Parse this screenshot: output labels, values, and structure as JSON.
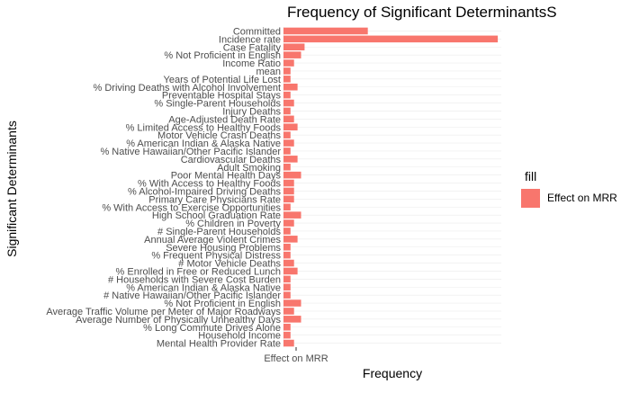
{
  "chart_data": {
    "type": "bar",
    "orientation": "horizontal",
    "title": "Frequency of Significant DeterminantsS",
    "xlabel": "Frequency",
    "ylabel": "Significant Determinants",
    "x_tick_labels": [
      "Effect on MRR"
    ],
    "grid": true,
    "legend": {
      "title": "fill",
      "placement": "right",
      "entries": [
        "Effect on MRR"
      ]
    },
    "series": [
      {
        "name": "Effect on MRR",
        "color": "#F8766D"
      }
    ],
    "categories": [
      "Mental Health Provider Rate",
      "Household Income",
      "% Long Commute Drives Alone",
      "Average Number of Physically Unhealthy Days",
      "Average Traffic Volume per Meter of Major Roadways",
      "% Not Proficient in English",
      "# Native Hawaiian/Other Pacific Islander",
      "% American Indian & Alaska Native",
      "# Households with Severe Cost Burden",
      "% Enrolled in Free or Reduced Lunch",
      "# Motor Vehicle Deaths",
      "% Frequent Physical Distress",
      "Severe Housing Problems",
      "Annual Average Violent Crimes",
      "# Single-Parent Households",
      "% Children in Poverty",
      "High School Graduation Rate",
      "% With Access to Exercise Opportunities",
      "Primary Care Physicians Rate",
      "% Alcohol-Impaired Driving Deaths",
      "% With Access to Healthy Foods",
      "Poor Mental Health Days",
      "Adult Smoking",
      "Cardiovascular Deaths",
      "% Native Hawaiian/Other Pacific Islander",
      "% American Indian & Alaska Native",
      "Motor Vehicle Crash Deaths",
      "% Limited Access to Healthy Foods",
      "Age-Adjusted Death Rate",
      "Injury Deaths",
      "% Single-Parent Households",
      "Preventable Hospital Stays",
      "% Driving Deaths with Alcohol Involvement",
      "Years of Potential Life Lost",
      "mean",
      "Income Ratio",
      "% Not Proficient in English",
      "Case Fatality",
      "Incidence rate",
      "Committed"
    ],
    "values": [
      3,
      2,
      2,
      5,
      3,
      5,
      2,
      2,
      2,
      4,
      3,
      2,
      2,
      4,
      2,
      3,
      5,
      2,
      3,
      3,
      3,
      5,
      2,
      4,
      2,
      3,
      2,
      4,
      3,
      2,
      3,
      2,
      4,
      2,
      2,
      3,
      5,
      6,
      61,
      24
    ],
    "x_range": [
      0,
      62
    ]
  }
}
